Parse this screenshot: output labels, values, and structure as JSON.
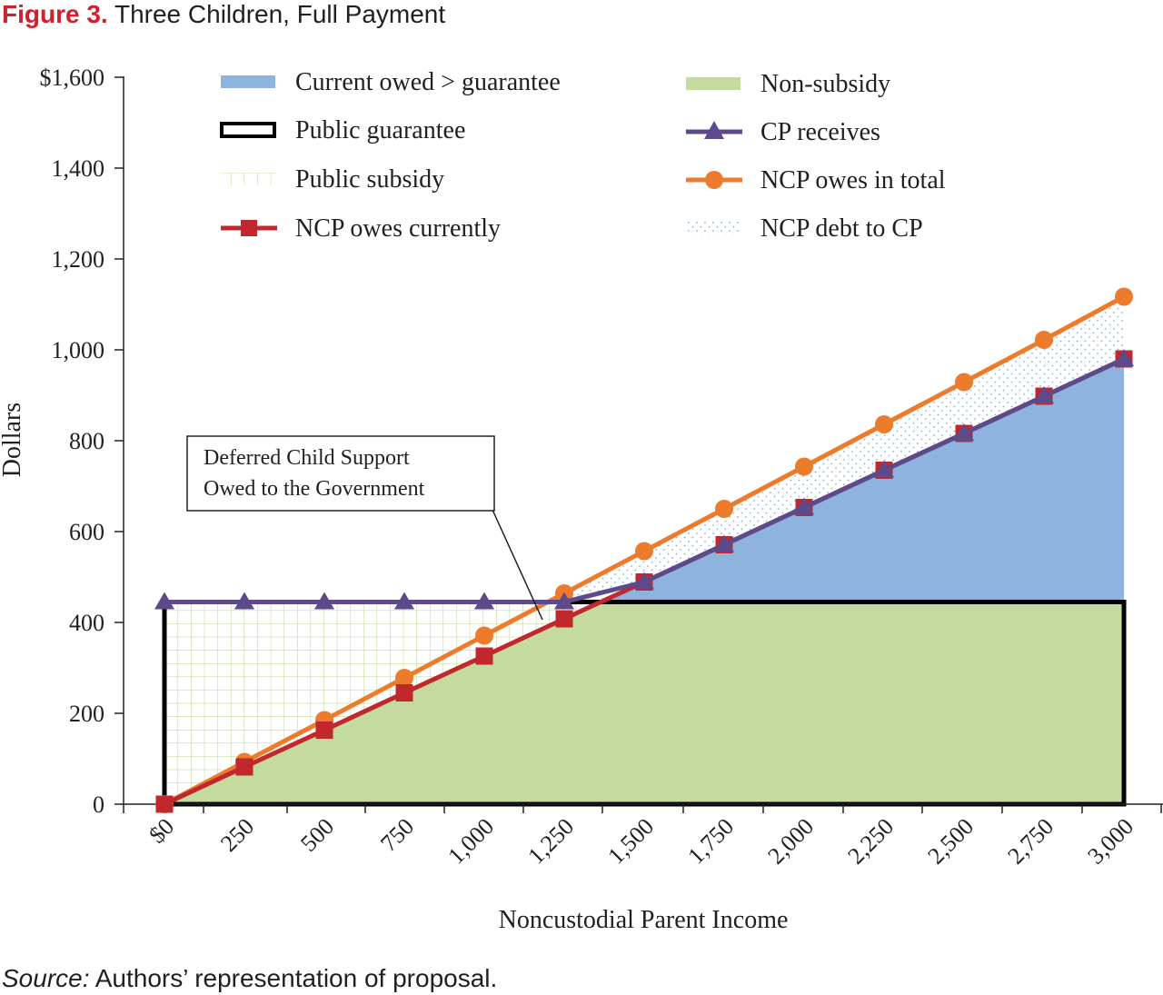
{
  "figure": {
    "label": "Figure 3.",
    "title": "Three Children, Full Payment"
  },
  "source": {
    "label": "Source:",
    "text": "Authors’ representation of proposal."
  },
  "chart_data": {
    "type": "line",
    "xlabel": "Noncustodial Parent Income",
    "ylabel": "Dollars",
    "x": [
      0,
      250,
      500,
      750,
      1000,
      1250,
      1500,
      1750,
      2000,
      2250,
      2500,
      2750,
      3000
    ],
    "x_tick_labels": [
      "$0",
      "250",
      "500",
      "750",
      "1,000",
      "1,250",
      "1,500",
      "1,750",
      "2,000",
      "2,250",
      "2,500",
      "2,750",
      "3,000"
    ],
    "y_tick_values": [
      0,
      200,
      400,
      600,
      800,
      1000,
      1200,
      1400,
      1600
    ],
    "y_tick_labels": [
      "0",
      "200",
      "400",
      "600",
      "800",
      "1,000",
      "1,200",
      "1,400",
      "$1,600"
    ],
    "ylim": [
      0,
      1600
    ],
    "grid": false,
    "legend_position": "top",
    "public_guarantee": 445,
    "series": [
      {
        "name": "NCP owes in total",
        "color": "#ec7b2c",
        "marker": "circle",
        "points": [
          [
            0,
            0
          ],
          [
            250,
            93
          ],
          [
            500,
            185
          ],
          [
            750,
            278
          ],
          [
            1000,
            371
          ],
          [
            1250,
            464
          ],
          [
            1500,
            557
          ],
          [
            1750,
            650
          ],
          [
            2000,
            743
          ],
          [
            2250,
            836
          ],
          [
            2500,
            929
          ],
          [
            2750,
            1022
          ],
          [
            3000,
            1117
          ]
        ]
      },
      {
        "name": "NCP owes currently",
        "color": "#c0282e",
        "marker": "square",
        "points": [
          [
            0,
            0
          ],
          [
            250,
            82
          ],
          [
            500,
            163
          ],
          [
            750,
            245
          ],
          [
            1000,
            326
          ],
          [
            1250,
            408
          ],
          [
            1500,
            489
          ],
          [
            1750,
            571
          ],
          [
            2000,
            653
          ],
          [
            2250,
            735
          ],
          [
            2500,
            816
          ],
          [
            2750,
            898
          ],
          [
            3000,
            980
          ]
        ]
      },
      {
        "name": "CP receives",
        "color": "#5c4a8a",
        "marker": "triangle",
        "points": [
          [
            0,
            445
          ],
          [
            250,
            445
          ],
          [
            500,
            445
          ],
          [
            750,
            445
          ],
          [
            1000,
            445
          ],
          [
            1250,
            445
          ],
          [
            1500,
            489
          ],
          [
            1750,
            571
          ],
          [
            2000,
            653
          ],
          [
            2250,
            735
          ],
          [
            2500,
            816
          ],
          [
            2750,
            898
          ],
          [
            3000,
            980
          ]
        ]
      }
    ],
    "areas": [
      {
        "name": "Current owed > guarantee",
        "color": "#8fb3df"
      },
      {
        "name": "Public guarantee",
        "color": "#000000"
      },
      {
        "name": "Public subsidy",
        "color": "#c4dba0"
      },
      {
        "name": "Non-subsidy",
        "color": "#c5da9e"
      },
      {
        "name": "NCP debt to CP",
        "color": "#7fb3d9"
      }
    ],
    "legend": [
      {
        "label": "Current owed > guarantee",
        "kind": "patch-blue"
      },
      {
        "label": "Non-subsidy",
        "kind": "patch-green"
      },
      {
        "label": "Public guarantee",
        "kind": "outline"
      },
      {
        "label": "CP receives",
        "kind": "line-triangle"
      },
      {
        "label": "Public subsidy",
        "kind": "grid"
      },
      {
        "label": "NCP owes in total",
        "kind": "line-circle"
      },
      {
        "label": "NCP owes currently",
        "kind": "line-square"
      },
      {
        "label": "NCP debt to CP",
        "kind": "dots"
      }
    ],
    "annotation": {
      "line1": "Deferred Child Support",
      "line2": "Owed to the Government"
    }
  }
}
